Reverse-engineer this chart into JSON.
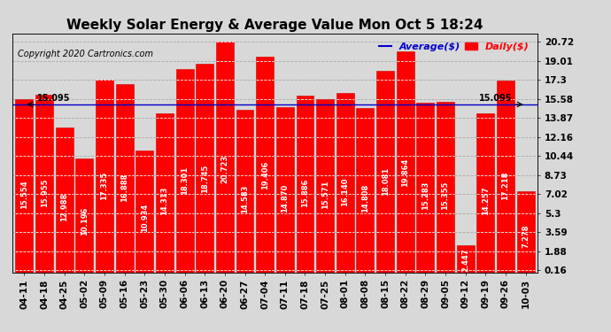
{
  "title": "Weekly Solar Energy & Average Value Mon Oct 5 18:24",
  "copyright": "Copyright 2020 Cartronics.com",
  "legend_avg": "Average($)",
  "legend_daily": "Daily($)",
  "categories": [
    "04-11",
    "04-18",
    "04-25",
    "05-02",
    "05-09",
    "05-16",
    "05-23",
    "05-30",
    "06-06",
    "06-13",
    "06-20",
    "06-27",
    "07-04",
    "07-11",
    "07-18",
    "07-25",
    "08-01",
    "08-08",
    "08-15",
    "08-22",
    "08-29",
    "09-05",
    "09-12",
    "09-19",
    "09-26",
    "10-03"
  ],
  "values": [
    15.554,
    15.955,
    12.988,
    10.196,
    17.335,
    16.888,
    10.934,
    14.313,
    18.301,
    18.745,
    20.723,
    14.583,
    19.406,
    14.87,
    15.886,
    15.571,
    16.14,
    14.808,
    18.081,
    19.864,
    15.283,
    15.355,
    2.447,
    14.257,
    17.218,
    7.278
  ],
  "average_value": 15.095,
  "bar_color": "#ff0000",
  "bar_edge_color": "#cc0000",
  "average_line_color": "#0000cc",
  "grid_color": "#aaaaaa",
  "background_color": "#d8d8d8",
  "yticks_right": [
    0.16,
    1.88,
    3.59,
    5.3,
    7.02,
    8.73,
    10.44,
    12.16,
    13.87,
    15.58,
    17.3,
    19.01,
    20.72
  ],
  "ylim_max": 21.5,
  "avg_label": "15.095",
  "title_fontsize": 11,
  "tick_fontsize": 7.5,
  "bar_label_fontsize": 6,
  "copyright_fontsize": 7,
  "legend_fontsize": 8
}
